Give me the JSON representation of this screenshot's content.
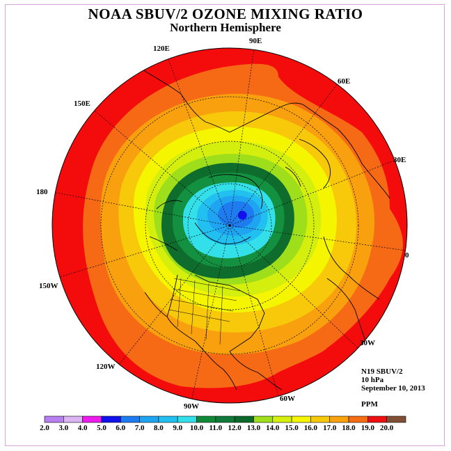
{
  "title": "NOAA SBUV/2 OZONE MIXING RATIO",
  "subtitle": "Northern Hemisphere",
  "longitude_labels": [
    "90E",
    "60E",
    "30E",
    "0",
    "30W",
    "60W",
    "90W",
    "120W",
    "150W",
    "180",
    "150E",
    "120E"
  ],
  "info": {
    "instrument": "N19 SBUV/2",
    "level": "10 hPa",
    "date": "September 10, 2013",
    "units": "PPM"
  },
  "colorbar": {
    "ticks": [
      "2.0",
      "3.0",
      "4.0",
      "5.0",
      "6.0",
      "7.0",
      "8.0",
      "9.0",
      "10.0",
      "11.0",
      "12.0",
      "13.0",
      "14.0",
      "15.0",
      "16.0",
      "17.0",
      "18.0",
      "19.0",
      "20.0"
    ],
    "colors": [
      "#b77fef",
      "#dcb4f3",
      "#ee1bee",
      "#1111f0",
      "#1e7cf0",
      "#1ea4f0",
      "#22c0f0",
      "#33e0ea",
      "#118a38",
      "#0f7a3a",
      "#0b6a2a",
      "#9fe01a",
      "#d6f00d",
      "#f5f500",
      "#f8c90a",
      "#f8a20e",
      "#f66c15",
      "#ee0f10",
      "#7f5035"
    ]
  },
  "map_colors": {
    "ring_18_20": "#f40c0c",
    "ring_17_18": "#f76a15",
    "ring_16_17": "#f8a00e",
    "ring_15_16": "#f8c80a",
    "ring_14_15": "#f5f500",
    "ring_13_14": "#d4ef0d",
    "ring_12_13": "#9ede1a",
    "ring_11_12": "#0e6d2c",
    "ring_10_11": "#139040",
    "ring_9_10": "#33e0ea",
    "ring_8_9": "#22c0f0",
    "ring_7_8": "#1ea4f0",
    "ring_6_7": "#1e7cf0",
    "ring_5_6": "#1111f0"
  }
}
